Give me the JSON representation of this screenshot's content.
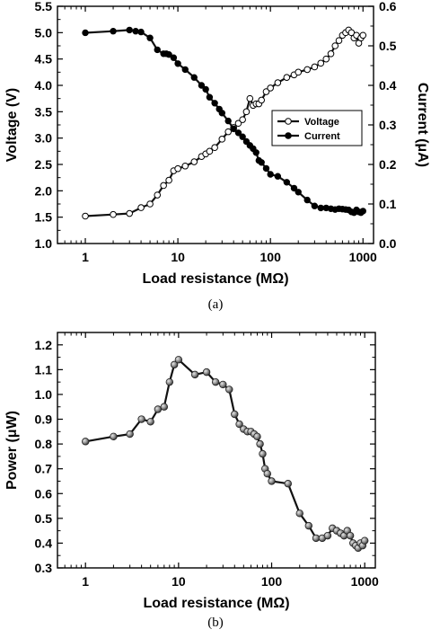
{
  "chart_data": [
    {
      "type": "line",
      "panel_caption": "(a)",
      "xlabel": "Load resistance (MΩ)",
      "xscale": "log",
      "xlim": [
        0.5,
        1300
      ],
      "xticks": [
        1,
        10,
        100,
        1000
      ],
      "xtick_labels": [
        "1",
        "10",
        "100",
        "1000"
      ],
      "ylabel": "Voltage (V)",
      "ylim": [
        1.0,
        5.5
      ],
      "yticks": [
        1.0,
        1.5,
        2.0,
        2.5,
        3.0,
        3.5,
        4.0,
        4.5,
        5.0,
        5.5
      ],
      "ytick_labels": [
        "1.0",
        "1.5",
        "2.0",
        "2.5",
        "3.0",
        "3.5",
        "4.0",
        "4.5",
        "5.0",
        "5.5"
      ],
      "y2label": "Current (μA)",
      "y2lim": [
        0.0,
        0.6
      ],
      "y2ticks": [
        0.0,
        0.1,
        0.2,
        0.3,
        0.4,
        0.5,
        0.6
      ],
      "y2tick_labels": [
        "0.0",
        "0.1",
        "0.2",
        "0.3",
        "0.4",
        "0.5",
        "0.6"
      ],
      "legend_position": "right-middle",
      "series": [
        {
          "name": "Voltage",
          "axis": "left",
          "marker": "open-circle",
          "x": [
            1,
            2,
            3,
            4,
            5,
            6,
            7,
            8,
            9,
            10,
            12,
            15,
            18,
            20,
            22,
            25,
            30,
            35,
            40,
            45,
            50,
            55,
            60,
            65,
            70,
            75,
            80,
            90,
            100,
            120,
            150,
            180,
            200,
            250,
            300,
            350,
            400,
            450,
            500,
            550,
            600,
            650,
            700,
            750,
            800,
            850,
            900,
            950,
            1000
          ],
          "y": [
            1.52,
            1.55,
            1.57,
            1.68,
            1.75,
            1.92,
            2.1,
            2.2,
            2.38,
            2.42,
            2.47,
            2.55,
            2.65,
            2.7,
            2.75,
            2.82,
            2.98,
            3.12,
            3.2,
            3.28,
            3.35,
            3.5,
            3.75,
            3.62,
            3.65,
            3.65,
            3.72,
            3.88,
            3.95,
            4.05,
            4.15,
            4.2,
            4.25,
            4.3,
            4.35,
            4.42,
            4.5,
            4.6,
            4.75,
            4.85,
            4.95,
            5.0,
            5.05,
            5.0,
            4.9,
            4.95,
            4.8,
            4.9,
            4.95
          ]
        },
        {
          "name": "Current",
          "axis": "right",
          "marker": "filled-circle",
          "x": [
            1,
            2,
            3,
            3.5,
            4,
            5,
            6,
            7,
            7.5,
            8,
            9,
            10,
            12,
            15,
            18,
            20,
            22,
            25,
            28,
            30,
            35,
            40,
            45,
            50,
            55,
            60,
            65,
            70,
            75,
            80,
            90,
            100,
            120,
            150,
            180,
            200,
            250,
            300,
            350,
            400,
            450,
            500,
            550,
            600,
            650,
            700,
            750,
            800,
            850,
            900,
            950,
            1000
          ],
          "y": [
            0.533,
            0.537,
            0.54,
            0.537,
            0.535,
            0.52,
            0.49,
            0.48,
            0.48,
            0.478,
            0.47,
            0.455,
            0.44,
            0.42,
            0.4,
            0.39,
            0.37,
            0.355,
            0.34,
            0.33,
            0.31,
            0.29,
            0.28,
            0.27,
            0.258,
            0.248,
            0.24,
            0.23,
            0.21,
            0.205,
            0.19,
            0.175,
            0.17,
            0.155,
            0.14,
            0.13,
            0.11,
            0.095,
            0.09,
            0.09,
            0.088,
            0.086,
            0.088,
            0.087,
            0.086,
            0.085,
            0.08,
            0.078,
            0.085,
            0.08,
            0.078,
            0.082
          ]
        }
      ]
    },
    {
      "type": "line",
      "panel_caption": "(b)",
      "xlabel": "Load resistance (MΩ)",
      "xscale": "log",
      "xlim": [
        0.5,
        1300
      ],
      "xticks": [
        1,
        10,
        100,
        1000
      ],
      "xtick_labels": [
        "1",
        "10",
        "100",
        "1000"
      ],
      "ylabel": "Power (μW)",
      "ylim": [
        0.3,
        1.25
      ],
      "yticks": [
        0.3,
        0.4,
        0.5,
        0.6,
        0.7,
        0.8,
        0.9,
        1.0,
        1.1,
        1.2
      ],
      "ytick_labels": [
        "0.3",
        "0.4",
        "0.5",
        "0.6",
        "0.7",
        "0.8",
        "0.9",
        "1.0",
        "1.1",
        "1.2"
      ],
      "series": [
        {
          "name": "",
          "axis": "left",
          "marker": "gray-sphere",
          "x": [
            1,
            2,
            3,
            4,
            5,
            6,
            7,
            8,
            9,
            10,
            15,
            20,
            25,
            30,
            35,
            40,
            45,
            50,
            55,
            60,
            65,
            70,
            75,
            80,
            85,
            90,
            100,
            150,
            200,
            250,
            300,
            350,
            400,
            450,
            500,
            550,
            600,
            650,
            700,
            750,
            800,
            850,
            900,
            950,
            1000
          ],
          "y": [
            0.81,
            0.83,
            0.84,
            0.9,
            0.89,
            0.94,
            0.95,
            1.05,
            1.12,
            1.14,
            1.08,
            1.09,
            1.05,
            1.04,
            1.02,
            0.92,
            0.88,
            0.86,
            0.85,
            0.85,
            0.84,
            0.83,
            0.8,
            0.76,
            0.7,
            0.68,
            0.65,
            0.64,
            0.52,
            0.47,
            0.42,
            0.42,
            0.43,
            0.46,
            0.45,
            0.44,
            0.43,
            0.45,
            0.43,
            0.4,
            0.39,
            0.38,
            0.4,
            0.39,
            0.41
          ]
        }
      ]
    }
  ]
}
